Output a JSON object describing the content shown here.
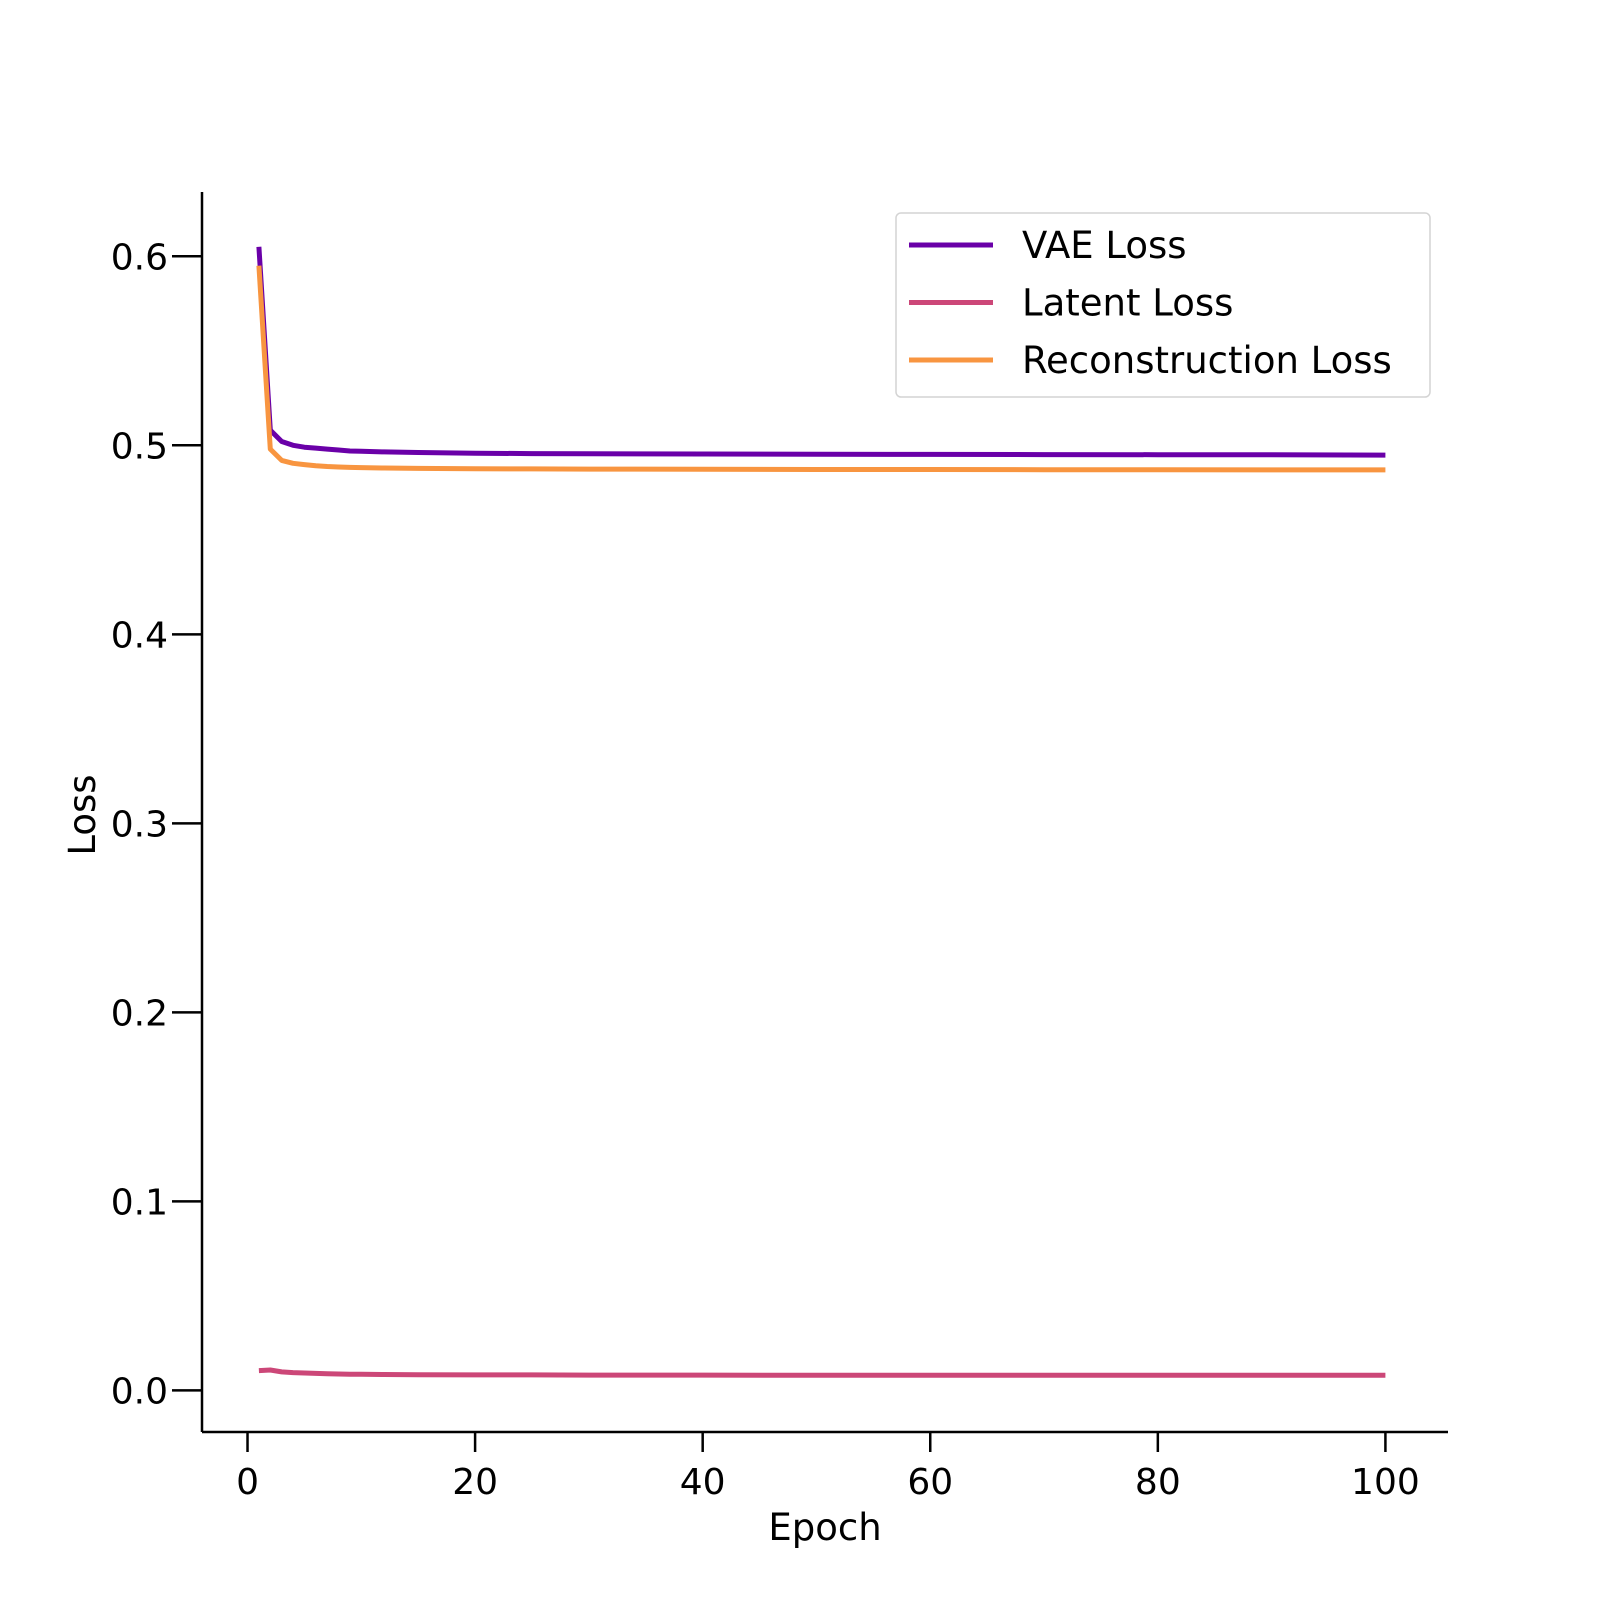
{
  "chart_data": {
    "type": "line",
    "xlabel": "Epoch",
    "ylabel": "Loss",
    "xlim": [
      -4,
      105.5
    ],
    "ylim": [
      -0.022,
      0.634
    ],
    "xticks": [
      0,
      20,
      40,
      60,
      80,
      100
    ],
    "yticks": [
      0.0,
      0.1,
      0.2,
      0.3,
      0.4,
      0.5,
      0.6
    ],
    "grid": false,
    "legend_position": "top-right",
    "series": [
      {
        "name": "VAE Loss",
        "color": "#6a00a8",
        "x": [
          1,
          2,
          3,
          4,
          5,
          6,
          7,
          8,
          9,
          10,
          12,
          15,
          20,
          25,
          30,
          40,
          50,
          60,
          70,
          80,
          90,
          100
        ],
        "y": [
          0.605,
          0.508,
          0.502,
          0.5,
          0.499,
          0.4985,
          0.498,
          0.4975,
          0.497,
          0.4968,
          0.4965,
          0.4962,
          0.4958,
          0.4956,
          0.4955,
          0.4954,
          0.4953,
          0.4952,
          0.4951,
          0.495,
          0.495,
          0.4948
        ]
      },
      {
        "name": "Latent Loss",
        "color": "#cc4778",
        "x": [
          1,
          2,
          3,
          4,
          5,
          6,
          7,
          8,
          9,
          10,
          12,
          15,
          20,
          25,
          30,
          40,
          50,
          60,
          70,
          80,
          90,
          100
        ],
        "y": [
          0.0105,
          0.0108,
          0.0098,
          0.0094,
          0.0092,
          0.009,
          0.0088,
          0.0087,
          0.0086,
          0.0085,
          0.0084,
          0.0083,
          0.0082,
          0.0082,
          0.0081,
          0.0081,
          0.008,
          0.008,
          0.008,
          0.008,
          0.008,
          0.008
        ]
      },
      {
        "name": "Reconstruction Loss",
        "color": "#f89540",
        "x": [
          1,
          2,
          3,
          4,
          5,
          6,
          7,
          8,
          9,
          10,
          12,
          15,
          20,
          25,
          30,
          40,
          50,
          60,
          70,
          80,
          90,
          100
        ],
        "y": [
          0.595,
          0.498,
          0.492,
          0.4905,
          0.4898,
          0.4892,
          0.4888,
          0.4885,
          0.4883,
          0.4882,
          0.488,
          0.4878,
          0.4876,
          0.4875,
          0.4874,
          0.4873,
          0.4872,
          0.4872,
          0.4871,
          0.4871,
          0.487,
          0.487
        ]
      }
    ]
  }
}
